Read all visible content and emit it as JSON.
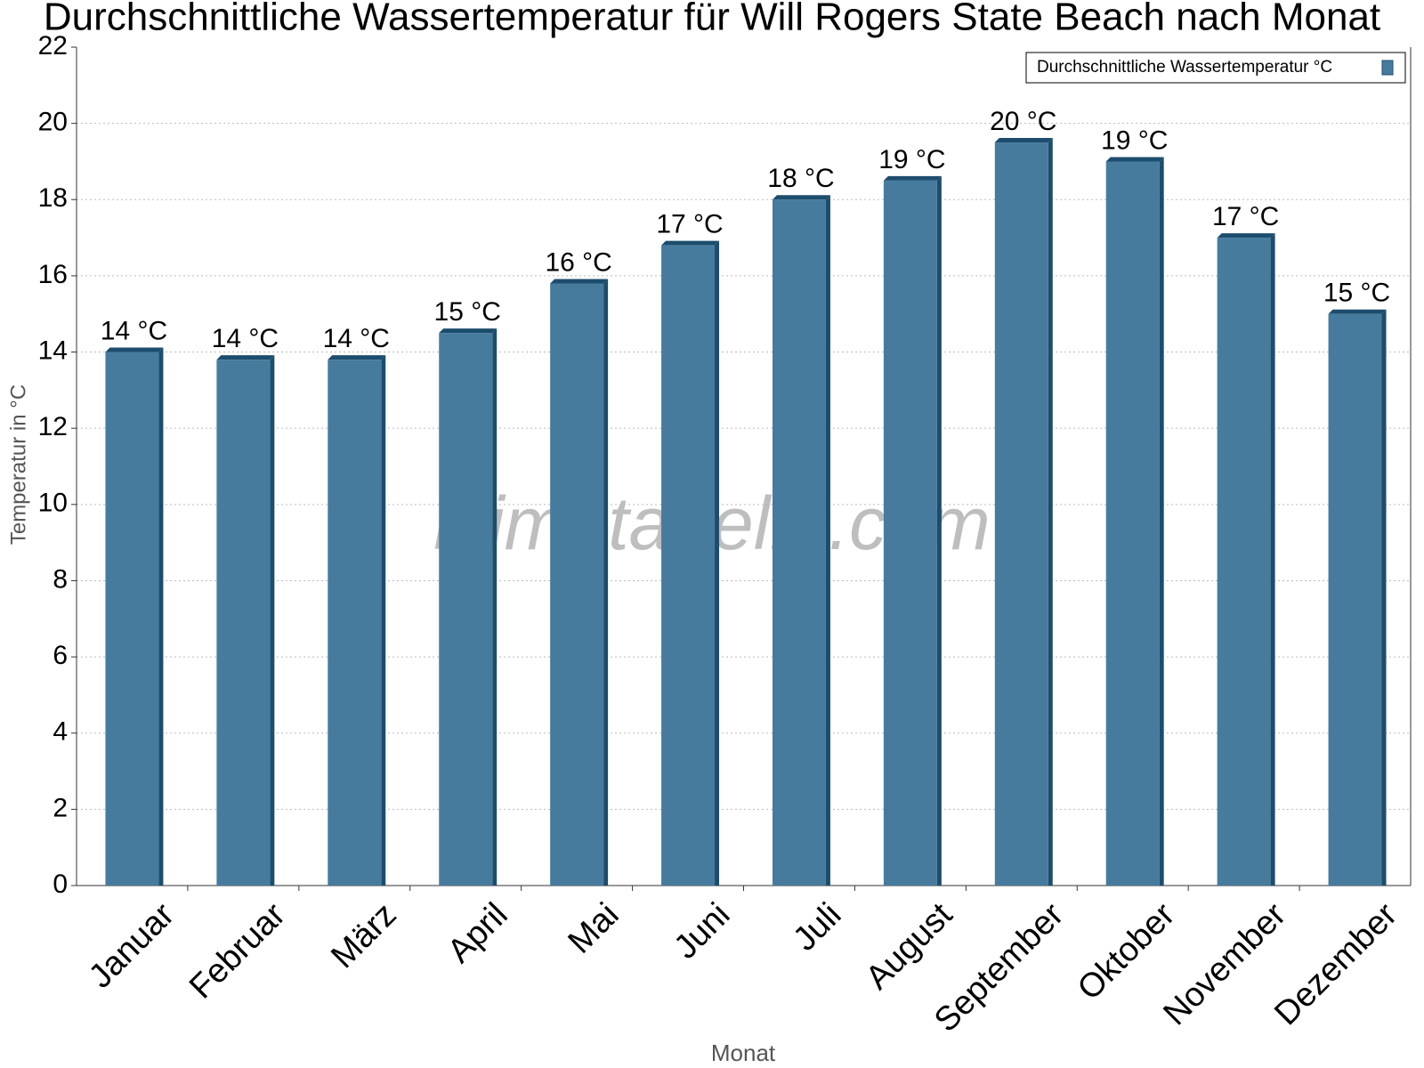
{
  "chart_data": {
    "type": "bar",
    "title": "Durchschnittliche Wassertemperatur für Will Rogers State Beach nach Monat",
    "x_label": "Monat",
    "y_label": "Temperatur in °C",
    "watermark": "klimatabelle.com",
    "categories": [
      "Januar",
      "Februar",
      "März",
      "April",
      "Mai",
      "Juni",
      "Juli",
      "August",
      "September",
      "Oktober",
      "November",
      "Dezember"
    ],
    "series": [
      {
        "name": "Durchschnittliche Wassertemperatur °C",
        "color": "#467b9e",
        "values": [
          14.0,
          13.8,
          13.8,
          14.5,
          15.8,
          16.8,
          18.0,
          18.5,
          19.5,
          19.0,
          17.0,
          15.0
        ],
        "value_labels": [
          "14 °C",
          "14 °C",
          "14 °C",
          "15 °C",
          "16 °C",
          "17 °C",
          "18 °C",
          "19 °C",
          "20 °C",
          "19 °C",
          "17 °C",
          "15 °C"
        ]
      }
    ],
    "ylim": [
      0,
      22
    ],
    "yticks": [
      0,
      2,
      4,
      6,
      8,
      10,
      12,
      14,
      16,
      18,
      20,
      22
    ],
    "grid": true,
    "legend": "top-right"
  }
}
